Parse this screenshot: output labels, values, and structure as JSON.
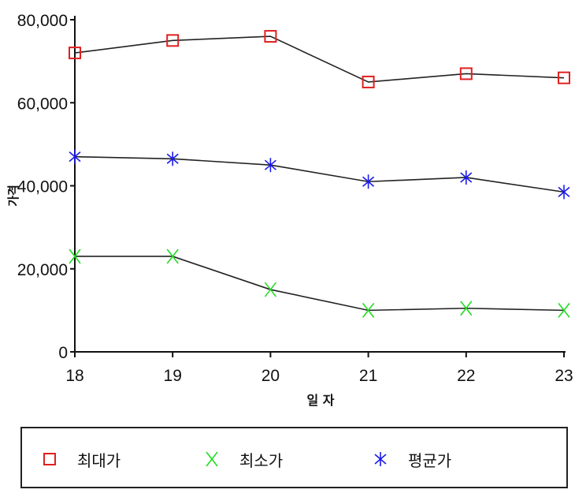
{
  "chart_data": {
    "type": "line",
    "x": [
      "18",
      "19",
      "20",
      "21",
      "22",
      "23"
    ],
    "xlabel": "일 자",
    "ylabel": "가격",
    "ylim": [
      0,
      80000
    ],
    "yticks": [
      "0",
      "20,000",
      "40,000",
      "60,000",
      "80,000"
    ],
    "series": [
      {
        "name": "최대가",
        "values": [
          72000,
          75000,
          76000,
          65000,
          67000,
          66000
        ],
        "color": "#e02020",
        "marker": "square"
      },
      {
        "name": "최소가",
        "values": [
          23000,
          23000,
          15000,
          10000,
          10500,
          10000
        ],
        "color": "#22dd22",
        "marker": "x"
      },
      {
        "name": "평균가",
        "values": [
          47000,
          46500,
          45000,
          41000,
          42000,
          38500
        ],
        "color": "#1a1aee",
        "marker": "asterisk"
      }
    ],
    "line_color": "#222222",
    "grid": false,
    "legend_position": "bottom"
  }
}
